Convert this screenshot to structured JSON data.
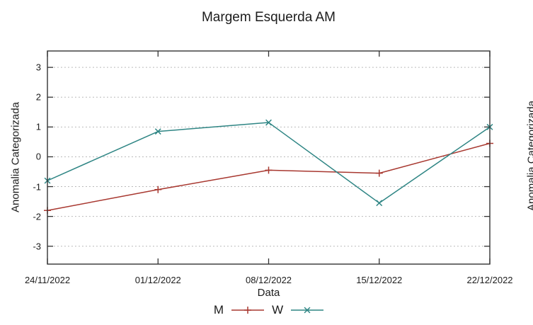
{
  "chart_data": {
    "type": "line",
    "title": "Margem Esquerda AM",
    "xlabel": "Data",
    "ylabel": "Anomalia Categorizada",
    "categories": [
      "24/11/2022",
      "01/12/2022",
      "08/12/2022",
      "15/12/2022",
      "22/12/2022"
    ],
    "series": [
      {
        "name": "M",
        "color": "#a83830",
        "marker": "plus",
        "values": [
          -1.8,
          -1.1,
          -0.45,
          -0.55,
          0.45
        ]
      },
      {
        "name": "W",
        "color": "#2e8584",
        "marker": "cross",
        "values": [
          -0.8,
          0.85,
          1.15,
          -1.55,
          1.0
        ]
      }
    ],
    "y_ticks": [
      3,
      2,
      1,
      0,
      -1,
      -2,
      -3
    ],
    "ylim": [
      -3.6,
      3.55
    ],
    "grid": "horizontal dotted lines at integer y values, no vertical gridlines",
    "legend_position": "bottom-center below x-axis label",
    "colors": {
      "border": "#333333",
      "gridline": "#b3b3b3",
      "text": "#1c1c1c"
    }
  },
  "adjacent_chart": {
    "ylabel": "Anomalia Categorizada",
    "note": "partially visible rotated y-axis label of a second chart clipped at right edge"
  }
}
